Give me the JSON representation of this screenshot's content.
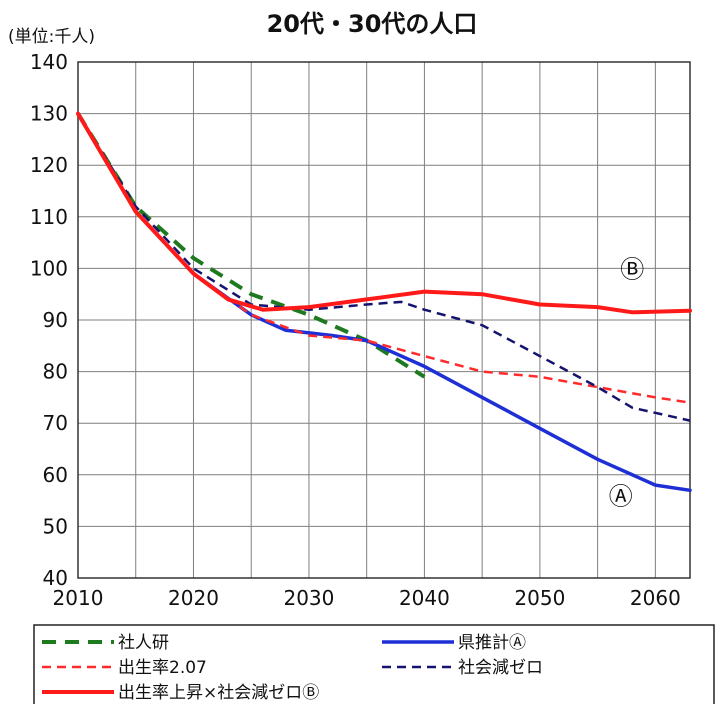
{
  "chart_data": {
    "type": "line",
    "title": "20代・30代の人口",
    "ylabel": "(単位:千人)",
    "xlabel": "",
    "xlim": [
      2010,
      2063
    ],
    "ylim": [
      40,
      140
    ],
    "x_ticks": [
      2010,
      2020,
      2030,
      2040,
      2050,
      2060
    ],
    "y_ticks": [
      40,
      50,
      60,
      70,
      80,
      90,
      100,
      110,
      120,
      130,
      140
    ],
    "grid": true,
    "legend_position": "bottom",
    "series": [
      {
        "name": "社人研",
        "color": "#1e7a1e",
        "dash": "long-dash",
        "points": [
          [
            2010,
            130
          ],
          [
            2015,
            112
          ],
          [
            2020,
            102
          ],
          [
            2025,
            95
          ],
          [
            2030,
            91
          ],
          [
            2035,
            86
          ],
          [
            2040,
            79
          ]
        ]
      },
      {
        "name": "県推計Ⓐ",
        "color": "#1f2fd6",
        "dash": "solid",
        "points": [
          [
            2010,
            130
          ],
          [
            2015,
            111
          ],
          [
            2020,
            99
          ],
          [
            2025,
            91
          ],
          [
            2028,
            88
          ],
          [
            2032,
            87
          ],
          [
            2035,
            86
          ],
          [
            2040,
            81
          ],
          [
            2045,
            75
          ],
          [
            2050,
            69
          ],
          [
            2055,
            63
          ],
          [
            2060,
            58
          ],
          [
            2063,
            57
          ]
        ]
      },
      {
        "name": "出生率2.07",
        "color": "#ff2b2b",
        "dash": "dash",
        "points": [
          [
            2010,
            130
          ],
          [
            2015,
            111
          ],
          [
            2020,
            99
          ],
          [
            2025,
            91
          ],
          [
            2030,
            87
          ],
          [
            2035,
            86
          ],
          [
            2040,
            83
          ],
          [
            2045,
            80
          ],
          [
            2050,
            79
          ],
          [
            2055,
            77
          ],
          [
            2060,
            75
          ],
          [
            2063,
            74
          ]
        ]
      },
      {
        "name": "社会減ゼロ",
        "color": "#14146e",
        "dash": "dash",
        "points": [
          [
            2010,
            130
          ],
          [
            2015,
            112
          ],
          [
            2020,
            100
          ],
          [
            2025,
            93
          ],
          [
            2030,
            92
          ],
          [
            2035,
            93
          ],
          [
            2038,
            93.5
          ],
          [
            2040,
            92
          ],
          [
            2045,
            89
          ],
          [
            2050,
            83
          ],
          [
            2055,
            77
          ],
          [
            2058,
            73
          ],
          [
            2063,
            70.5
          ]
        ]
      },
      {
        "name": "出生率上昇×社会減ゼロⒷ",
        "color": "#ff1a1a",
        "dash": "solid",
        "points": [
          [
            2010,
            130
          ],
          [
            2015,
            111
          ],
          [
            2020,
            99
          ],
          [
            2023,
            94
          ],
          [
            2026,
            92
          ],
          [
            2030,
            92.5
          ],
          [
            2035,
            94
          ],
          [
            2040,
            95.5
          ],
          [
            2045,
            95
          ],
          [
            2050,
            93
          ],
          [
            2055,
            92.5
          ],
          [
            2058,
            91.5
          ],
          [
            2063,
            91.8
          ]
        ]
      }
    ],
    "annotations": [
      {
        "text": "Ⓑ",
        "x": 2058,
        "y": 100
      },
      {
        "text": "Ⓐ",
        "x": 2057,
        "y": 56
      }
    ]
  }
}
